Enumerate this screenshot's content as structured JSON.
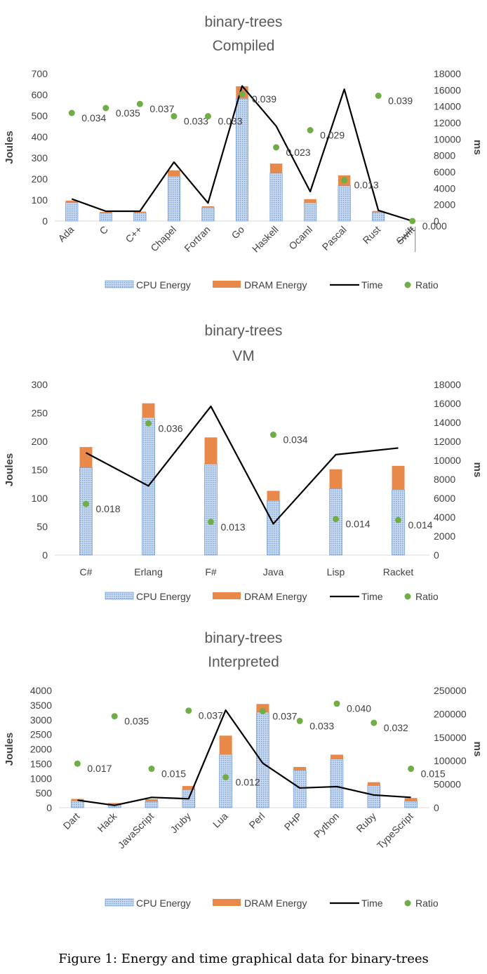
{
  "caption": "Figure 1: Energy and time graphical data for binary-trees",
  "colors": {
    "cpu": "#a9c4e8",
    "cpu_edge": "#5b8fd0",
    "dram": "#e8894a",
    "time": "#000000",
    "ratio": "#70ad47"
  },
  "legend": {
    "cpu": "CPU Energy",
    "dram": "DRAM Energy",
    "time": "Time",
    "ratio": "Ratio"
  },
  "chart_data": [
    {
      "type": "bar",
      "title": "binary-trees",
      "subtitle": "Compiled",
      "ylabel": "Joules",
      "y2label": "ms",
      "ylim": [
        0,
        700
      ],
      "yticks": [
        0,
        100,
        200,
        300,
        400,
        500,
        600,
        700
      ],
      "y2lim": [
        0,
        18000
      ],
      "y2ticks": [
        0,
        2000,
        4000,
        6000,
        8000,
        10000,
        12000,
        14000,
        16000,
        18000
      ],
      "categories": [
        "Ada",
        "C",
        "C++",
        "Chapel",
        "Fortran",
        "Go",
        "Haskell",
        "Ocaml",
        "Pascal",
        "Rust",
        "Swift"
      ],
      "strikethrough": [
        "Swift"
      ],
      "rotate_labels": true,
      "grid": false,
      "legend_position": "bottom",
      "series": [
        {
          "name": "CPU Energy",
          "kind": "bar-stack",
          "values": [
            88,
            38,
            40,
            213,
            64,
            582,
            228,
            87,
            168,
            42,
            0
          ]
        },
        {
          "name": "DRAM Energy",
          "kind": "bar-stack",
          "values": [
            9,
            5,
            5,
            28,
            6,
            58,
            45,
            17,
            49,
            6,
            0
          ]
        },
        {
          "name": "Time",
          "kind": "line",
          "axis": "right",
          "values": [
            2700,
            1200,
            1200,
            7200,
            2200,
            16500,
            11600,
            3600,
            16100,
            1300,
            0
          ]
        },
        {
          "name": "Ratio",
          "kind": "scatter",
          "axis": "right",
          "values": [
            13200,
            13800,
            14300,
            12800,
            12800,
            15500,
            9000,
            11100,
            5000,
            15300,
            0
          ],
          "labels": [
            "0.034",
            "0.035",
            "0.037",
            "0.033",
            "0.033",
            "0.039",
            "0.023",
            "0.029",
            "0.013",
            "0.039",
            "0.000"
          ]
        }
      ]
    },
    {
      "type": "bar",
      "title": "binary-trees",
      "subtitle": "VM",
      "ylabel": "Joules",
      "y2label": "ms",
      "ylim": [
        0,
        300
      ],
      "yticks": [
        0,
        50,
        100,
        150,
        200,
        250,
        300
      ],
      "y2lim": [
        0,
        18000
      ],
      "y2ticks": [
        0,
        2000,
        4000,
        6000,
        8000,
        10000,
        12000,
        14000,
        16000,
        18000
      ],
      "categories": [
        "C#",
        "Erlang",
        "F#",
        "Java",
        "Lisp",
        "Racket"
      ],
      "strikethrough": [],
      "rotate_labels": false,
      "grid": false,
      "legend_position": "bottom",
      "series": [
        {
          "name": "CPU Energy",
          "kind": "bar-stack",
          "values": [
            154,
            242,
            160,
            96,
            117,
            115
          ]
        },
        {
          "name": "DRAM Energy",
          "kind": "bar-stack",
          "values": [
            36,
            25,
            47,
            17,
            34,
            42
          ]
        },
        {
          "name": "Time",
          "kind": "line",
          "axis": "right",
          "values": [
            10800,
            7300,
            15700,
            3300,
            10600,
            11300
          ]
        },
        {
          "name": "Ratio",
          "kind": "scatter",
          "axis": "right",
          "values": [
            5400,
            13900,
            3500,
            12700,
            3800,
            3700
          ],
          "labels": [
            "0.018",
            "0.036",
            "0.013",
            "0.034",
            "0.014",
            "0.014"
          ]
        }
      ]
    },
    {
      "type": "bar",
      "title": "binary-trees",
      "subtitle": "Interpreted",
      "ylabel": "Joules",
      "y2label": "ms",
      "ylim": [
        0,
        4000
      ],
      "yticks": [
        0,
        500,
        1000,
        1500,
        2000,
        2500,
        3000,
        3500,
        4000
      ],
      "y2lim": [
        0,
        250000
      ],
      "y2ticks": [
        0,
        50000,
        100000,
        150000,
        200000,
        250000
      ],
      "categories": [
        "Dart",
        "Hack",
        "JavaScript",
        "Jruby",
        "Lua",
        "Perl",
        "PHP",
        "Python",
        "Ruby",
        "TypeScript"
      ],
      "strikethrough": [],
      "rotate_labels": true,
      "grid": false,
      "legend_position": "bottom",
      "series": [
        {
          "name": "CPU Energy",
          "kind": "bar-stack",
          "values": [
            230,
            90,
            210,
            620,
            1820,
            3260,
            1280,
            1660,
            760,
            220
          ]
        },
        {
          "name": "DRAM Energy",
          "kind": "bar-stack",
          "values": [
            70,
            70,
            80,
            120,
            640,
            280,
            110,
            150,
            110,
            110
          ]
        },
        {
          "name": "Time",
          "kind": "line",
          "axis": "right",
          "values": [
            16000,
            5000,
            22000,
            19000,
            208000,
            95000,
            42000,
            45000,
            27000,
            22000
          ]
        },
        {
          "name": "Ratio",
          "kind": "scatter",
          "axis": "right",
          "values": [
            94000,
            195000,
            83000,
            207000,
            65000,
            206000,
            185000,
            222000,
            181000,
            83000
          ],
          "labels": [
            "0.017",
            "0.035",
            "0.015",
            "0.037",
            "0.012",
            "0.037",
            "0.033",
            "0.040",
            "0.032",
            "0.015"
          ]
        }
      ]
    }
  ]
}
